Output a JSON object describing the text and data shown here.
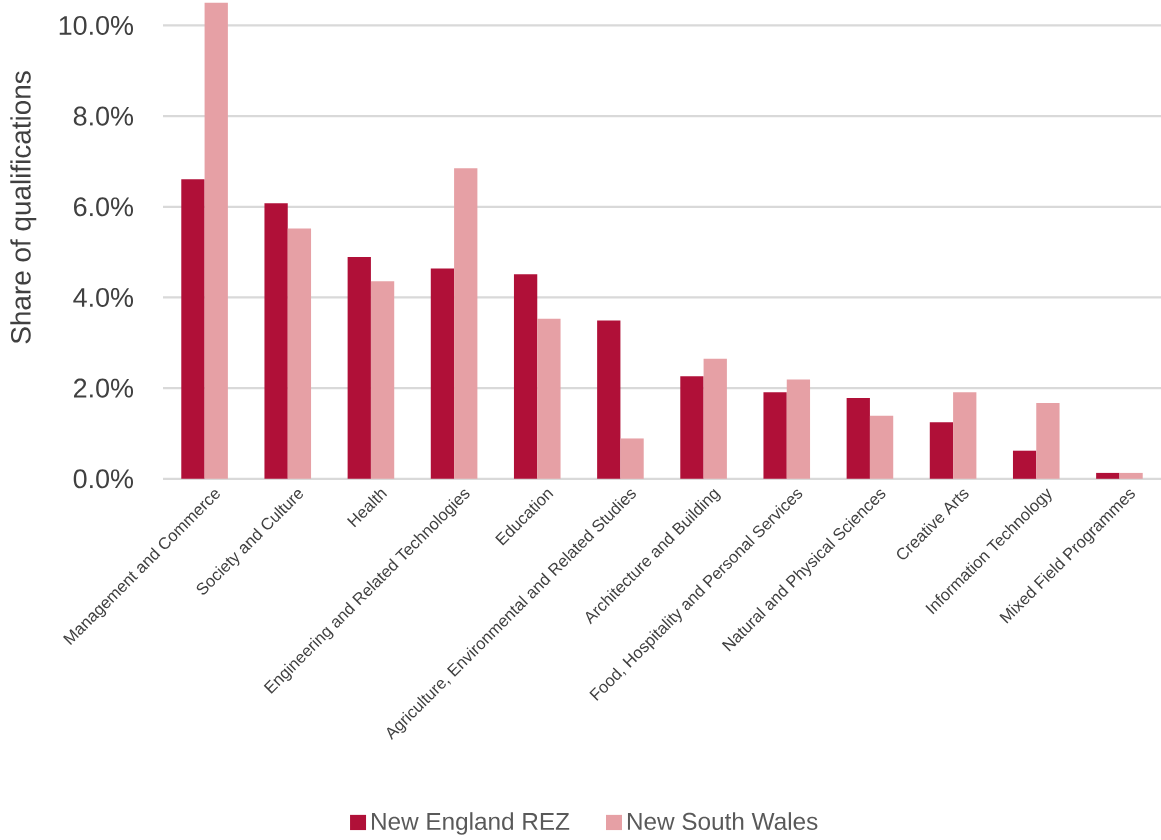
{
  "chart_data": {
    "type": "bar",
    "ylabel": "Share of qualifications",
    "categories": [
      "Management and Commerce",
      "Society and Culture",
      "Health",
      "Engineering and Related Technologies",
      "Education",
      "Agriculture, Environmental and Related Studies",
      "Architecture and Building",
      "Food, Hospitality and Personal Services",
      "Natural and Physical Sciences",
      "Creative Arts",
      "Information Technology",
      "Mixed Field Programmes"
    ],
    "series": [
      {
        "name": "New England REZ",
        "color": "#b01038",
        "values": [
          6.61,
          6.08,
          4.89,
          4.64,
          4.51,
          3.49,
          2.26,
          1.91,
          1.78,
          1.25,
          0.62,
          0.13
        ]
      },
      {
        "name": "New South Wales",
        "color": "#e6a0a5",
        "values": [
          10.5,
          5.52,
          4.36,
          6.85,
          3.53,
          0.89,
          2.65,
          2.19,
          1.39,
          1.91,
          1.67,
          0.13
        ]
      }
    ],
    "ylim": [
      0,
      10.5
    ],
    "yticks": [
      {
        "value": 0,
        "label": "0.0%"
      },
      {
        "value": 2,
        "label": "2.0%"
      },
      {
        "value": 4,
        "label": "4.0%"
      },
      {
        "value": 6,
        "label": "6.0%"
      },
      {
        "value": 8,
        "label": "8.0%"
      },
      {
        "value": 10,
        "label": "10.0%"
      }
    ],
    "grid": "y",
    "legend": "bottom"
  }
}
